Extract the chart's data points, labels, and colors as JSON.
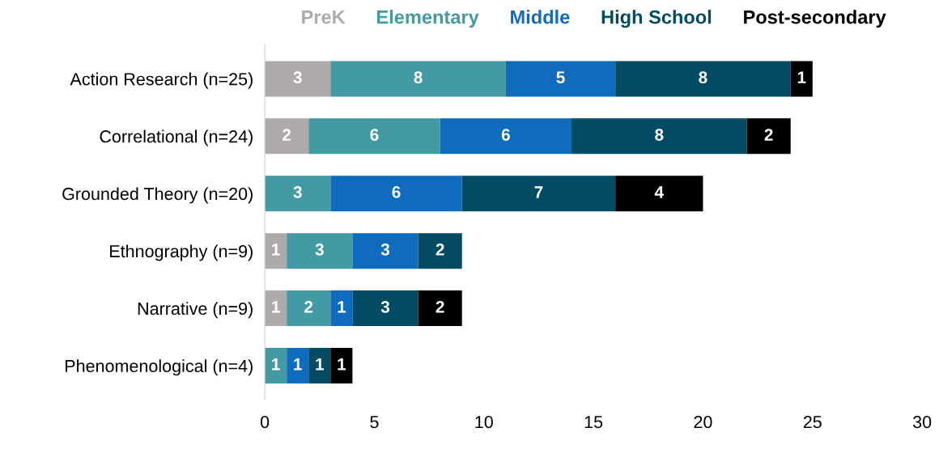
{
  "chart_data": {
    "type": "bar",
    "orientation": "horizontal",
    "stacked": true,
    "categories": [
      "Action Research (n=25)",
      "Correlational (n=24)",
      "Grounded Theory (n=20)",
      "Ethnography (n=9)",
      "Narrative (n=9)",
      "Phenomenological (n=4)"
    ],
    "series": [
      {
        "name": "PreK",
        "color": "#aeaaaa",
        "values": [
          3,
          2,
          null,
          1,
          1,
          null
        ]
      },
      {
        "name": "Elementary",
        "color": "#439aa3",
        "values": [
          8,
          6,
          3,
          3,
          2,
          1
        ]
      },
      {
        "name": "Middle",
        "color": "#0f6bbb",
        "values": [
          5,
          6,
          6,
          3,
          1,
          1
        ]
      },
      {
        "name": "High School",
        "color": "#034a63",
        "values": [
          8,
          8,
          7,
          2,
          3,
          1
        ]
      },
      {
        "name": "Post-secondary",
        "color": "#000000",
        "values": [
          1,
          2,
          4,
          null,
          2,
          1
        ]
      }
    ],
    "xlim": [
      0,
      30
    ],
    "xticks": [
      0,
      5,
      10,
      15,
      20,
      25,
      30
    ],
    "data_labels": true,
    "legend": "top",
    "grid": false
  }
}
